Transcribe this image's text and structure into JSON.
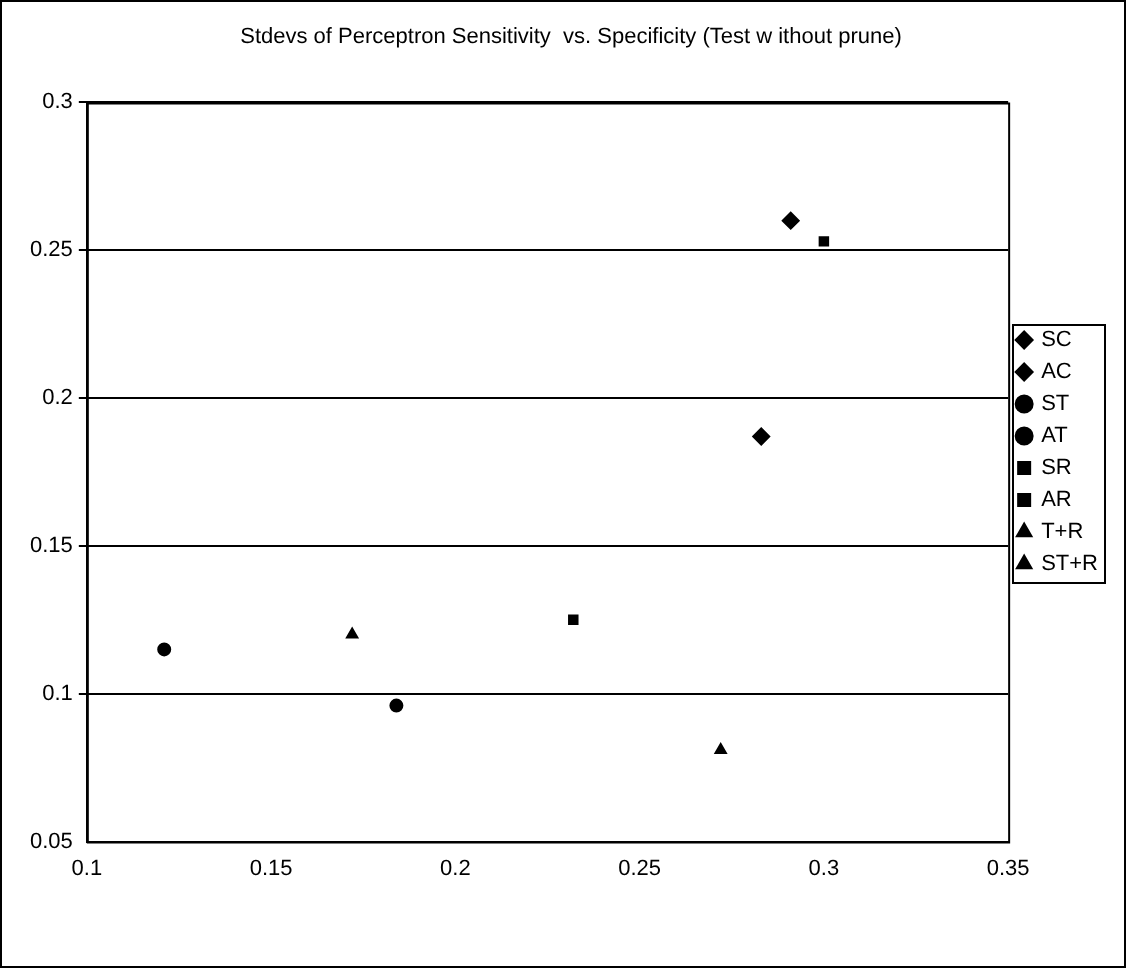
{
  "chart_data": {
    "type": "scatter",
    "title": "Stdevs of Perceptron Sensitivity  vs. Specificity (Test w ithout prune)",
    "xlim": [
      0.1,
      0.35
    ],
    "xticks": [
      0.1,
      0.15,
      0.2,
      0.25,
      0.3,
      0.35
    ],
    "ylim": [
      0.05,
      0.3
    ],
    "yticks": [
      0.05,
      0.1,
      0.15,
      0.2,
      0.25,
      0.3
    ],
    "grid": "y",
    "legend": "right",
    "series": [
      {
        "name": "SC",
        "color": "#000000",
        "marker": "diamond",
        "x": [
          0.291
        ],
        "values": [
          0.26
        ]
      },
      {
        "name": "AC",
        "color": "#000000",
        "marker": "diamond",
        "x": [
          0.283
        ],
        "values": [
          0.187
        ]
      },
      {
        "name": "ST",
        "color": "#000000",
        "marker": "circle",
        "x": [
          0.184
        ],
        "values": [
          0.096
        ]
      },
      {
        "name": "AT",
        "color": "#000000",
        "marker": "circle",
        "x": [
          0.121
        ],
        "values": [
          0.115
        ]
      },
      {
        "name": "SR",
        "color": "#000000",
        "marker": "square",
        "x": [
          0.3
        ],
        "values": [
          0.253
        ]
      },
      {
        "name": "AR",
        "color": "#000000",
        "marker": "square",
        "x": [
          0.232
        ],
        "values": [
          0.125
        ]
      },
      {
        "name": "T+R",
        "color": "#000000",
        "marker": "triangle",
        "x": [
          0.172
        ],
        "values": [
          0.12
        ]
      },
      {
        "name": "ST+R",
        "color": "#000000",
        "marker": "triangle",
        "x": [
          0.272
        ],
        "values": [
          0.081
        ]
      }
    ]
  }
}
